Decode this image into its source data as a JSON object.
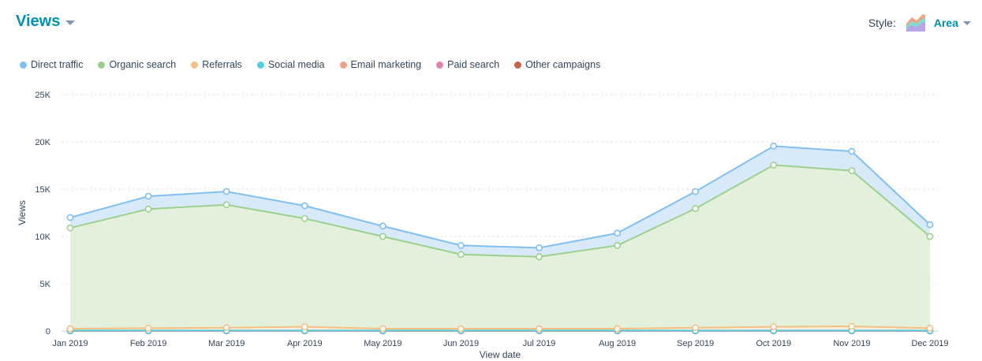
{
  "header": {
    "title": "Views"
  },
  "style_selector": {
    "label": "Style:",
    "value": "Area",
    "icon": "area-chart-icon"
  },
  "chart_data": {
    "type": "area",
    "stacked": true,
    "xlabel": "View date",
    "ylabel": "Views",
    "ylim": [
      0,
      25000
    ],
    "yticks": [
      0,
      5000,
      10000,
      15000,
      20000,
      25000
    ],
    "ytick_labels": [
      "0",
      "5K",
      "10K",
      "15K",
      "20K",
      "25K"
    ],
    "grid": true,
    "legend_position": "top-left",
    "categories": [
      "Jan 2019",
      "Feb 2019",
      "Mar 2019",
      "Apr 2019",
      "May 2019",
      "Jun 2019",
      "Jul 2019",
      "Aug 2019",
      "Sep 2019",
      "Oct 2019",
      "Nov 2019",
      "Dec 2019"
    ],
    "series": [
      {
        "name": "Other campaigns",
        "color": "#c2634b",
        "fill": "#ecd2ca",
        "values": [
          20,
          20,
          20,
          20,
          20,
          20,
          20,
          20,
          20,
          20,
          20,
          20
        ]
      },
      {
        "name": "Paid search",
        "color": "#e47fb0",
        "fill": "#f8dce9",
        "values": [
          0,
          0,
          0,
          0,
          0,
          0,
          0,
          0,
          0,
          0,
          0,
          0
        ]
      },
      {
        "name": "Email marketing",
        "color": "#f2a184",
        "fill": "#fbe4da",
        "values": [
          30,
          30,
          30,
          30,
          30,
          30,
          30,
          30,
          30,
          30,
          30,
          30
        ]
      },
      {
        "name": "Social media",
        "color": "#4fd0de",
        "fill": "#d5f3f6",
        "values": [
          0,
          0,
          0,
          0,
          0,
          0,
          0,
          0,
          0,
          0,
          0,
          0
        ]
      },
      {
        "name": "Referrals",
        "color": "#f5c083",
        "fill": "#fdeedd",
        "values": [
          200,
          250,
          300,
          400,
          200,
          200,
          200,
          200,
          300,
          400,
          450,
          250
        ]
      },
      {
        "name": "Organic search",
        "color": "#9cd18d",
        "fill": "#e2f0dc",
        "values": [
          10650,
          12600,
          13000,
          11450,
          9750,
          7850,
          7600,
          8800,
          12600,
          17100,
          16450,
          9700
        ]
      },
      {
        "name": "Direct traffic",
        "color": "#80bff2",
        "fill": "#d8e9fa",
        "values": [
          1100,
          1350,
          1400,
          1350,
          1100,
          950,
          950,
          1300,
          1800,
          2000,
          2050,
          1250
        ]
      }
    ],
    "legend": [
      {
        "name": "Direct traffic",
        "color": "#80bff2"
      },
      {
        "name": "Organic search",
        "color": "#9cd18d"
      },
      {
        "name": "Referrals",
        "color": "#f5c083"
      },
      {
        "name": "Social media",
        "color": "#4fd0de"
      },
      {
        "name": "Email marketing",
        "color": "#f2a184"
      },
      {
        "name": "Paid search",
        "color": "#e47fb0"
      },
      {
        "name": "Other campaigns",
        "color": "#c2634b"
      }
    ]
  }
}
